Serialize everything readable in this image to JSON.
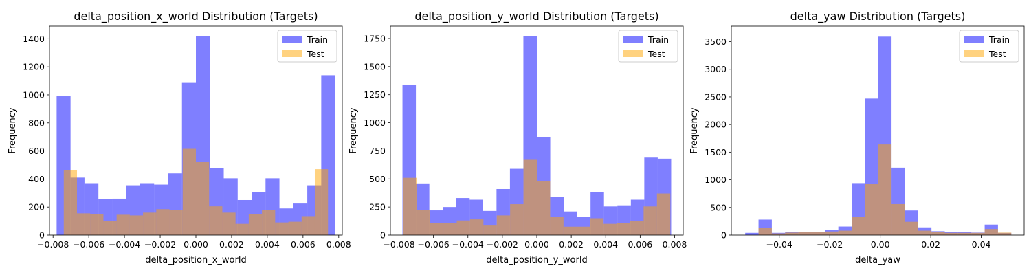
{
  "chart_data": [
    {
      "type": "histogram",
      "title": "delta_position_x_world Distribution (Targets)",
      "xlabel": "delta_position_x_world",
      "ylabel": "Frequency",
      "xlim": [
        -0.0082,
        0.0082
      ],
      "ylim": [
        0,
        1490
      ],
      "xticks": [
        -0.008,
        -0.006,
        -0.004,
        -0.002,
        0.0,
        0.002,
        0.004,
        0.006,
        0.008
      ],
      "xtick_labels": [
        "−0.008",
        "−0.006",
        "−0.004",
        "−0.002",
        "0.000",
        "0.002",
        "0.004",
        "0.006",
        "0.008"
      ],
      "yticks": [
        0,
        200,
        400,
        600,
        800,
        1000,
        1200,
        1400
      ],
      "ytick_labels": [
        "0",
        "200",
        "400",
        "600",
        "800",
        "1000",
        "1200",
        "1400"
      ],
      "legend": [
        "Train",
        "Test"
      ],
      "legend_position": "top-right",
      "series": [
        {
          "name": "Train",
          "color": "#7f7ff5",
          "bin_start": -0.0078,
          "bin_width": 0.00078,
          "values": [
            990,
            410,
            370,
            255,
            260,
            355,
            370,
            360,
            440,
            1090,
            1420,
            480,
            405,
            250,
            305,
            405,
            190,
            225,
            355,
            1140
          ]
        },
        {
          "name": "Test",
          "color": "#fdd17f",
          "bin_start": -0.0074,
          "bin_width": 0.00074,
          "values": [
            465,
            155,
            150,
            100,
            145,
            140,
            160,
            185,
            180,
            615,
            520,
            205,
            160,
            80,
            150,
            180,
            90,
            95,
            135,
            470
          ]
        }
      ]
    },
    {
      "type": "histogram",
      "title": "delta_position_y_world Distribution (Targets)",
      "xlabel": "delta_position_y_world",
      "ylabel": "Frequency",
      "xlim": [
        -0.0085,
        0.0085
      ],
      "ylim": [
        0,
        1860
      ],
      "xticks": [
        -0.008,
        -0.006,
        -0.004,
        -0.002,
        0.0,
        0.002,
        0.004,
        0.006,
        0.008
      ],
      "xtick_labels": [
        "−0.008",
        "−0.006",
        "−0.004",
        "−0.002",
        "0.000",
        "0.002",
        "0.004",
        "0.006",
        "0.008"
      ],
      "yticks": [
        0,
        250,
        500,
        750,
        1000,
        1250,
        1500,
        1750
      ],
      "ytick_labels": [
        "0",
        "250",
        "500",
        "750",
        "1000",
        "1250",
        "1500",
        "1750"
      ],
      "legend": [
        "Train",
        "Test"
      ],
      "legend_position": "top-right",
      "series": [
        {
          "name": "Train",
          "color": "#7f7ff5",
          "bin_start": -0.0078,
          "bin_width": 0.00078,
          "values": [
            1340,
            460,
            220,
            250,
            330,
            315,
            215,
            410,
            590,
            1770,
            875,
            340,
            210,
            160,
            385,
            255,
            265,
            315,
            690,
            680
          ]
        },
        {
          "name": "Test",
          "color": "#fdd17f",
          "bin_start": -0.00775,
          "bin_width": 0.000775,
          "values": [
            510,
            225,
            110,
            105,
            130,
            140,
            85,
            175,
            275,
            670,
            480,
            160,
            75,
            75,
            150,
            100,
            110,
            125,
            255,
            370
          ]
        }
      ]
    },
    {
      "type": "histogram",
      "title": "delta_yaw Distribution (Targets)",
      "xlabel": "delta_yaw",
      "ylabel": "Frequency",
      "xlim": [
        -0.059,
        0.057
      ],
      "ylim": [
        0,
        3780
      ],
      "xticks": [
        -0.06,
        -0.04,
        -0.02,
        0.0,
        0.02,
        0.04
      ],
      "xtick_labels": [
        "−0.06",
        "−0.04",
        "−0.02",
        "0.00",
        "0.02",
        "0.04"
      ],
      "yticks": [
        0,
        500,
        1000,
        1500,
        2000,
        2500,
        3000,
        3500
      ],
      "ytick_labels": [
        "0",
        "500",
        "1000",
        "1500",
        "2000",
        "2500",
        "3000",
        "3500"
      ],
      "legend": [
        "Train",
        "Test"
      ],
      "legend_position": "top-right",
      "series": [
        {
          "name": "Train",
          "color": "#7f7ff5",
          "bin_start": -0.0535,
          "bin_width": 0.00527,
          "values": [
            40,
            280,
            40,
            55,
            60,
            60,
            95,
            155,
            940,
            2470,
            3590,
            1220,
            445,
            140,
            70,
            60,
            55,
            45,
            190,
            40
          ]
        },
        {
          "name": "Test",
          "color": "#fdd17f",
          "bin_start": -0.0535,
          "bin_width": 0.00527,
          "values": [
            0,
            130,
            30,
            45,
            55,
            60,
            65,
            80,
            330,
            920,
            1640,
            560,
            240,
            80,
            50,
            40,
            40,
            40,
            110,
            45
          ]
        }
      ]
    }
  ]
}
